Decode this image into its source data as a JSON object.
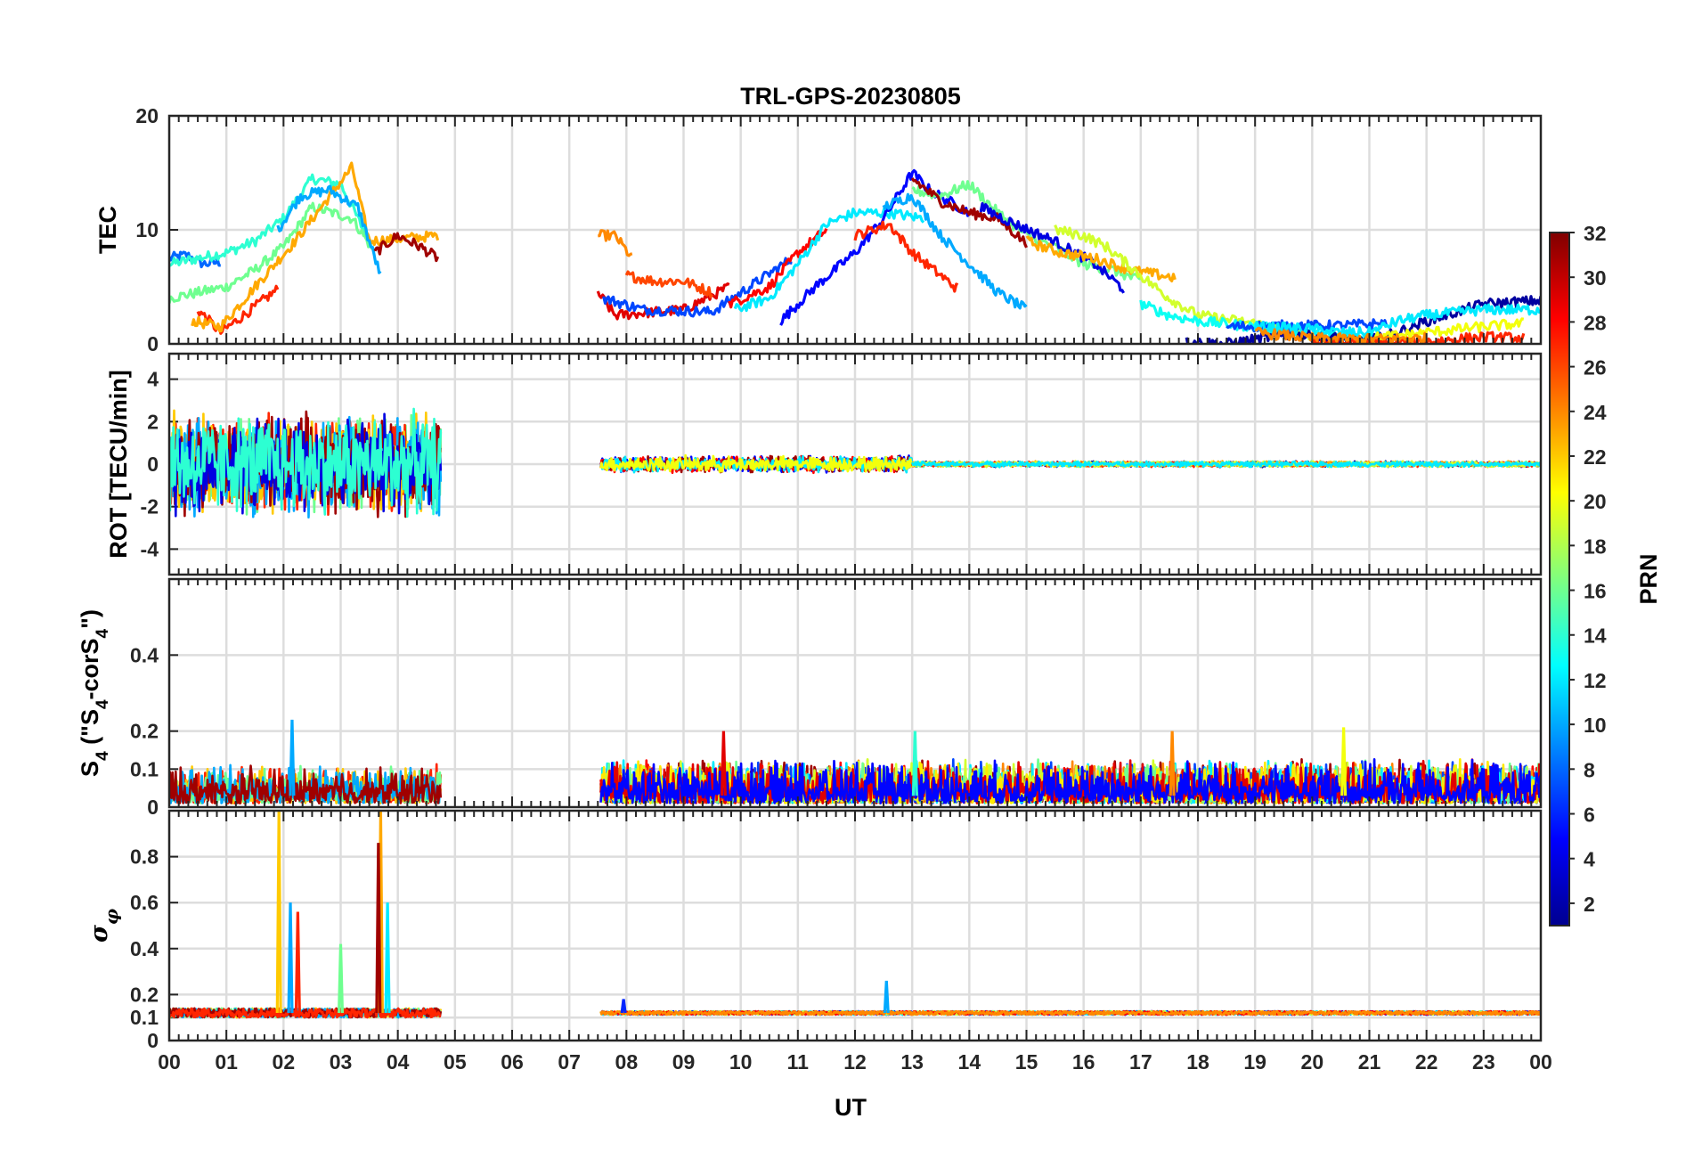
{
  "chart_data": {
    "type": "line",
    "title": "TRL-GPS-20230805",
    "xlabel": "UT",
    "x_ticks": [
      "00",
      "01",
      "02",
      "03",
      "04",
      "05",
      "06",
      "07",
      "08",
      "09",
      "10",
      "11",
      "12",
      "13",
      "14",
      "15",
      "16",
      "17",
      "18",
      "19",
      "20",
      "21",
      "22",
      "23",
      "00"
    ],
    "xlim": [
      0,
      24
    ],
    "grid": true,
    "colorbar": {
      "label": "PRN",
      "colormap": "jet",
      "range": [
        1,
        32
      ],
      "ticks": [
        "2",
        "4",
        "6",
        "8",
        "10",
        "12",
        "14",
        "16",
        "18",
        "20",
        "22",
        "24",
        "26",
        "28",
        "30",
        "32"
      ]
    },
    "panels": [
      {
        "ylabel": "TEC",
        "ylim": [
          0,
          20
        ],
        "y_ticks": [
          "0",
          "10",
          "20"
        ],
        "series": [
          {
            "prn": 8,
            "x": [
              0.0,
              0.3,
              0.6,
              0.9
            ],
            "y": [
              7.5,
              7.8,
              7.0,
              7.2
            ]
          },
          {
            "prn": 14,
            "x": [
              0.0,
              0.5,
              1.0,
              1.5,
              2.0,
              2.5,
              3.0,
              3.5
            ],
            "y": [
              7.0,
              7.5,
              8.0,
              9.0,
              11.0,
              14.5,
              14.0,
              9.0
            ]
          },
          {
            "prn": 16,
            "x": [
              0.0,
              0.5,
              1.0,
              1.5,
              2.0,
              2.5,
              3.2,
              3.6
            ],
            "y": [
              4.0,
              4.5,
              5.0,
              6.5,
              8.5,
              12.0,
              11.0,
              8.0
            ]
          },
          {
            "prn": 27,
            "x": [
              0.5,
              0.9,
              1.3,
              1.9
            ],
            "y": [
              3.0,
              1.0,
              2.5,
              4.8
            ]
          },
          {
            "prn": 23,
            "x": [
              0.4,
              0.9,
              1.5,
              2.2,
              3.2,
              3.5,
              4.7
            ],
            "y": [
              2.0,
              1.5,
              5.0,
              9.0,
              15.5,
              9.0,
              9.5
            ]
          },
          {
            "prn": 10,
            "x": [
              1.9,
              2.3,
              2.8,
              3.3,
              3.7
            ],
            "y": [
              10.0,
              13.0,
              13.5,
              12.0,
              6.0
            ]
          },
          {
            "prn": 31,
            "x": [
              3.6,
              4.0,
              4.4,
              4.7
            ],
            "y": [
              8.0,
              9.5,
              8.5,
              7.5
            ]
          },
          {
            "prn": 24,
            "x": [
              7.5,
              7.8,
              8.1
            ],
            "y": [
              9.5,
              9.5,
              7.5
            ]
          },
          {
            "prn": 29,
            "x": [
              7.5,
              7.8,
              8.5,
              9.0,
              9.8
            ],
            "y": [
              4.5,
              2.5,
              2.8,
              3.0,
              5.0
            ]
          },
          {
            "prn": 26,
            "x": [
              8.0,
              8.5,
              9.0,
              9.5
            ],
            "y": [
              6.0,
              5.5,
              5.5,
              4.5
            ]
          },
          {
            "prn": 7,
            "x": [
              7.6,
              8.3,
              9.5,
              10.9
            ],
            "y": [
              4.0,
              3.0,
              2.8,
              7.5
            ]
          },
          {
            "prn": 28,
            "x": [
              9.8,
              10.5,
              11.0,
              11.5
            ],
            "y": [
              3.5,
              5.0,
              8.0,
              10.0
            ]
          },
          {
            "prn": 12,
            "x": [
              9.9,
              10.5,
              11.0,
              11.5,
              12.0,
              12.6,
              13.2
            ],
            "y": [
              3.0,
              4.0,
              7.0,
              10.5,
              11.5,
              11.5,
              11.0
            ]
          },
          {
            "prn": 5,
            "x": [
              10.7,
              11.3,
              12.0,
              12.5,
              13.0,
              13.3,
              14.0
            ],
            "y": [
              2.0,
              5.0,
              8.0,
              11.0,
              15.0,
              13.5,
              11.5
            ]
          },
          {
            "prn": 27,
            "x": [
              12.0,
              12.6,
              13.0,
              13.5,
              13.8
            ],
            "y": [
              9.5,
              10.5,
              8.0,
              6.0,
              4.8
            ]
          },
          {
            "prn": 10,
            "x": [
              12.5,
              13.0,
              13.5,
              14.0,
              14.5,
              15.0
            ],
            "y": [
              12.0,
              13.0,
              9.5,
              7.0,
              4.5,
              3.0
            ]
          },
          {
            "prn": 16,
            "x": [
              13.0,
              13.5,
              14.0,
              14.5,
              15.0,
              15.5,
              16.0,
              16.5,
              17.0
            ],
            "y": [
              13.5,
              13.0,
              14.0,
              11.5,
              9.5,
              8.5,
              7.0,
              6.5,
              5.5
            ]
          },
          {
            "prn": 31,
            "x": [
              13.0,
              13.5,
              14.0,
              14.5,
              15.0
            ],
            "y": [
              14.5,
              12.5,
              11.5,
              11.0,
              8.8
            ]
          },
          {
            "prn": 4,
            "x": [
              14.2,
              14.8,
              15.5,
              16.2,
              16.7
            ],
            "y": [
              12.0,
              10.5,
              9.0,
              7.0,
              4.8
            ]
          },
          {
            "prn": 23,
            "x": [
              15.0,
              15.6,
              16.2,
              16.8,
              17.6
            ],
            "y": [
              9.0,
              8.0,
              7.5,
              6.5,
              5.8
            ]
          },
          {
            "prn": 19,
            "x": [
              15.5,
              16.0,
              16.4,
              17.0,
              17.5,
              18.0,
              19.0,
              20.0
            ],
            "y": [
              10.0,
              9.5,
              8.5,
              6.0,
              4.0,
              2.5,
              1.8,
              0.8
            ]
          },
          {
            "prn": 13,
            "x": [
              17.0,
              17.5,
              18.0,
              19.0,
              20.0,
              21.0
            ],
            "y": [
              3.5,
              2.5,
              2.0,
              1.5,
              1.0,
              0.5
            ]
          },
          {
            "prn": 2,
            "x": [
              17.8,
              18.5,
              19.5,
              20.5,
              21.0,
              21.5,
              22.0,
              23.0,
              24.0
            ],
            "y": [
              0.2,
              0.0,
              0.8,
              0.5,
              0.3,
              1.0,
              2.0,
              3.5,
              3.8
            ]
          },
          {
            "prn": 7,
            "x": [
              18.5,
              19.5,
              20.5,
              21.3
            ],
            "y": [
              1.5,
              1.6,
              1.6,
              1.8
            ]
          },
          {
            "prn": 12,
            "x": [
              19.0,
              20.0,
              20.5,
              21.0,
              21.5,
              22.0,
              23.0,
              24.0
            ],
            "y": [
              1.5,
              1.3,
              1.0,
              1.0,
              2.0,
              2.5,
              3.0,
              3.0
            ]
          },
          {
            "prn": 20,
            "x": [
              21.0,
              22.0,
              23.0,
              23.7
            ],
            "y": [
              0.5,
              1.0,
              1.5,
              1.8
            ]
          },
          {
            "prn": 27,
            "x": [
              20.0,
              21.0,
              22.0,
              23.0,
              23.7
            ],
            "y": [
              0.3,
              0.0,
              0.2,
              0.6,
              0.5
            ]
          },
          {
            "prn": 24,
            "x": [
              19.0,
              20.0,
              21.0,
              22.0
            ],
            "y": [
              1.0,
              0.5,
              0.4,
              0.5
            ]
          }
        ]
      },
      {
        "ylabel": "ROT [TECU/min]",
        "ylim": [
          -5.2,
          5.2
        ],
        "y_ticks": [
          "-4",
          "-2",
          "0",
          "2",
          "4"
        ],
        "segments": [
          {
            "x_range": [
              0.0,
              4.75
            ],
            "amplitude": 2.2,
            "prns": [
              16,
              27,
              22,
              10,
              31,
              4,
              14
            ]
          },
          {
            "x_range": [
              7.55,
              13.0
            ],
            "amplitude": 0.35,
            "prns": [
              5,
              28,
              31,
              12,
              20
            ]
          },
          {
            "x_range": [
              13.0,
              24.0
            ],
            "amplitude": 0.12,
            "prns": [
              2,
              16,
              23,
              27,
              19,
              12
            ]
          }
        ]
      },
      {
        "ylabel": "S4 (\"S4-corS4\")",
        "ylim": [
          0,
          0.6
        ],
        "y_ticks": [
          "0",
          "0.1",
          "0.2",
          "0.4"
        ],
        "segments": [
          {
            "x_range": [
              0.0,
              4.75
            ],
            "amplitude": 0.08,
            "prns": [
              27,
              22,
              16,
              10,
              31
            ]
          },
          {
            "x_range": [
              7.55,
              24.0
            ],
            "amplitude": 0.09,
            "prns": [
              31,
              28,
              24,
              7,
              12,
              19,
              16,
              21,
              29,
              5
            ]
          }
        ],
        "spikes": [
          {
            "prn": 10,
            "x": 2.15,
            "y": 0.23
          },
          {
            "prn": 29,
            "x": 9.7,
            "y": 0.2
          },
          {
            "prn": 14,
            "x": 13.05,
            "y": 0.2
          },
          {
            "prn": 24,
            "x": 17.55,
            "y": 0.2
          },
          {
            "prn": 20,
            "x": 20.55,
            "y": 0.21
          }
        ]
      },
      {
        "ylabel": "σφ",
        "ylim": [
          0,
          1
        ],
        "y_ticks": [
          "0",
          "0.1",
          "0.2",
          "0.4",
          "0.6",
          "0.8"
        ],
        "segments": [
          {
            "x_range": [
              0.0,
              4.75
            ],
            "baseline": 0.12,
            "amplitude": 0.04,
            "prns": [
              22,
              16,
              10,
              31,
              27
            ]
          },
          {
            "x_range": [
              7.55,
              24.0
            ],
            "baseline": 0.12,
            "amplitude": 0.015,
            "prns": [
              31,
              5,
              12,
              19,
              28,
              24
            ]
          }
        ],
        "spikes": [
          {
            "prn": 22,
            "x": 1.92,
            "y": 1.0
          },
          {
            "prn": 10,
            "x": 2.12,
            "y": 0.6
          },
          {
            "prn": 27,
            "x": 2.25,
            "y": 0.56
          },
          {
            "prn": 16,
            "x": 3.0,
            "y": 0.42
          },
          {
            "prn": 23,
            "x": 3.7,
            "y": 1.0
          },
          {
            "prn": 31,
            "x": 3.66,
            "y": 0.86
          },
          {
            "prn": 12,
            "x": 3.82,
            "y": 0.6
          },
          {
            "prn": 6,
            "x": 7.95,
            "y": 0.18
          },
          {
            "prn": 10,
            "x": 12.55,
            "y": 0.26
          }
        ]
      }
    ]
  }
}
